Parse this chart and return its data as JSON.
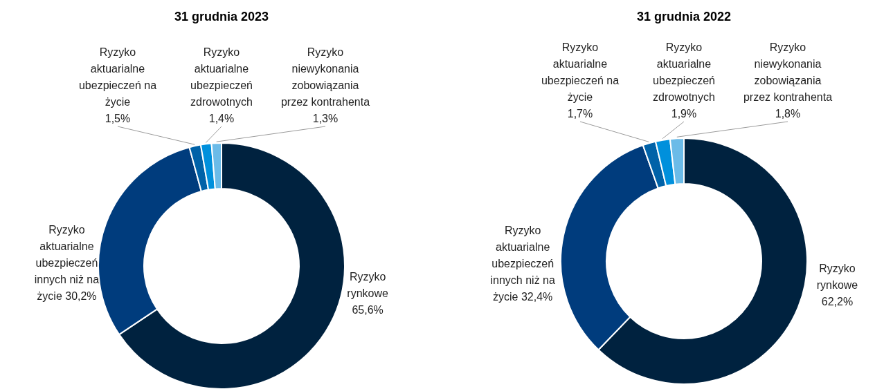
{
  "chart_data": [
    {
      "type": "donut",
      "title": "31 grudnia 2023",
      "categories": [
        "Ryzyko rynkowe",
        "Ryzyko aktuarialne ubezpieczeń innych niż na życie",
        "Ryzyko aktuarialne ubezpieczeń na życie",
        "Ryzyko aktuarialne ubezpieczeń zdrowotnych",
        "Ryzyko niewykonania zobowiązania przez kontrahenta"
      ],
      "values": [
        65.6,
        30.2,
        1.5,
        1.4,
        1.3
      ],
      "value_labels": [
        "65,6%",
        "30,2%",
        "1,5%",
        "1,4%",
        "1,3%"
      ],
      "colors": [
        "#00223f",
        "#003c7d",
        "#0062a8",
        "#0090dc",
        "#6bbbe8"
      ]
    },
    {
      "type": "donut",
      "title": "31 grudnia 2022",
      "categories": [
        "Ryzyko rynkowe",
        "Ryzyko aktuarialne ubezpieczeń innych niż na życie",
        "Ryzyko aktuarialne ubezpieczeń na życie",
        "Ryzyko aktuarialne ubezpieczeń zdrowotnych",
        "Ryzyko niewykonania zobowiązania przez kontrahenta"
      ],
      "values": [
        62.2,
        32.4,
        1.7,
        1.9,
        1.8
      ],
      "value_labels": [
        "62,2%",
        "32,4%",
        "1,7%",
        "1,9%",
        "1,8%"
      ],
      "colors": [
        "#00223f",
        "#003c7d",
        "#0062a8",
        "#0090dc",
        "#6bbbe8"
      ]
    }
  ]
}
